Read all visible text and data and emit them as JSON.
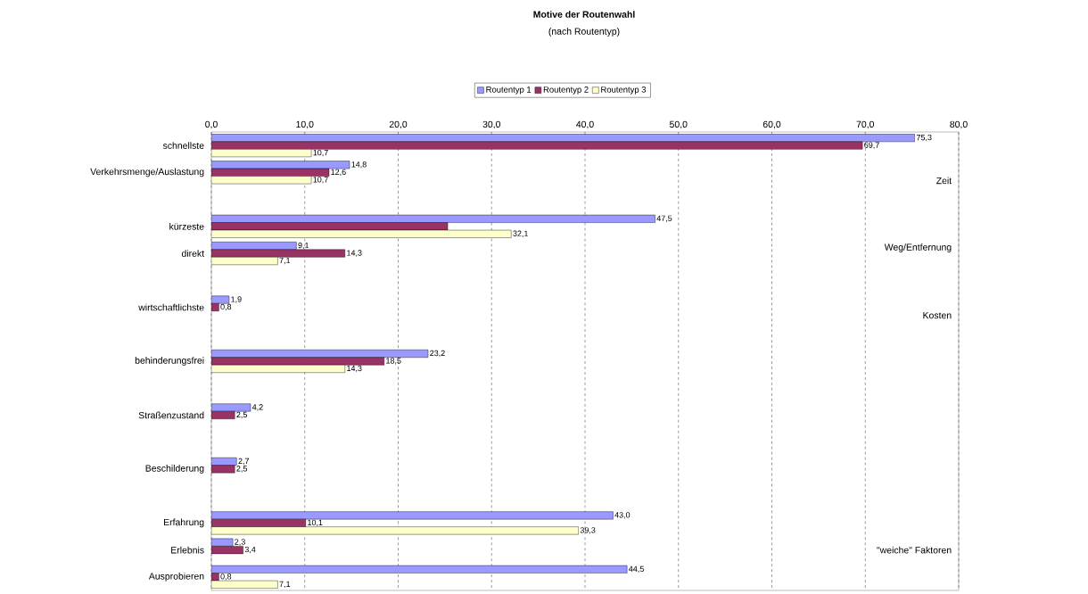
{
  "chart_data": {
    "type": "bar",
    "orientation": "horizontal",
    "title": "Motive der Routenwahl",
    "subtitle": "(nach Routentyp)",
    "categories": [
      "schnellste",
      "Verkehrsmenge/Auslastung",
      null,
      "kürzeste",
      "direkt",
      null,
      "wirtschaftlichste",
      null,
      "behinderungsfrei",
      null,
      "Straßenzustand",
      null,
      "Beschilderung",
      null,
      "Erfahrung",
      "Erlebnis",
      "Ausprobieren"
    ],
    "series": [
      {
        "name": "Routentyp 1",
        "color": "#9999ff",
        "values": [
          75.3,
          14.8,
          null,
          47.5,
          9.1,
          null,
          1.9,
          null,
          23.2,
          null,
          4.2,
          null,
          2.7,
          null,
          43.0,
          2.3,
          44.5
        ],
        "value_labels": [
          "75,3",
          "14,8",
          null,
          "47,5",
          "9,1",
          null,
          "1,9",
          null,
          "23,2",
          null,
          "4,2",
          null,
          "2,7",
          null,
          "43,0",
          "2,3",
          "44,5"
        ]
      },
      {
        "name": "Routentyp 2",
        "color": "#993366",
        "values": [
          69.7,
          12.6,
          null,
          25.3,
          14.3,
          null,
          0.8,
          null,
          18.5,
          null,
          2.5,
          null,
          2.5,
          null,
          10.1,
          3.4,
          0.8
        ],
        "value_labels": [
          "69,7",
          "12,6",
          null,
          null,
          "14,3",
          null,
          "0,8",
          null,
          "18,5",
          null,
          "2,5",
          null,
          "2,5",
          null,
          "10,1",
          "3,4",
          "0,8"
        ]
      },
      {
        "name": "Routentyp 3",
        "color": "#ffffcc",
        "values": [
          10.7,
          10.7,
          null,
          32.1,
          7.1,
          null,
          null,
          null,
          14.3,
          null,
          null,
          null,
          null,
          null,
          39.3,
          null,
          7.1
        ],
        "value_labels": [
          "10,7",
          "10,7",
          null,
          "32,1",
          "7,1",
          null,
          null,
          null,
          "14,3",
          null,
          null,
          null,
          null,
          null,
          "39,3",
          null,
          "7,1"
        ]
      }
    ],
    "xlim": [
      0,
      80
    ],
    "xticks": [
      {
        "value": 0,
        "label": "0,0"
      },
      {
        "value": 10,
        "label": "10,0"
      },
      {
        "value": 20,
        "label": "20,0"
      },
      {
        "value": 30,
        "label": "30,0"
      },
      {
        "value": 40,
        "label": "40,0"
      },
      {
        "value": 50,
        "label": "50,0"
      },
      {
        "value": 60,
        "label": "60,0"
      },
      {
        "value": 70,
        "label": "70,0"
      },
      {
        "value": 80,
        "label": "80,0"
      }
    ],
    "grid": "x",
    "legend": "top",
    "annotations": [
      "Zeit",
      "Weg/Entfernung",
      "Kosten",
      "\"weiche\" Faktoren"
    ]
  }
}
